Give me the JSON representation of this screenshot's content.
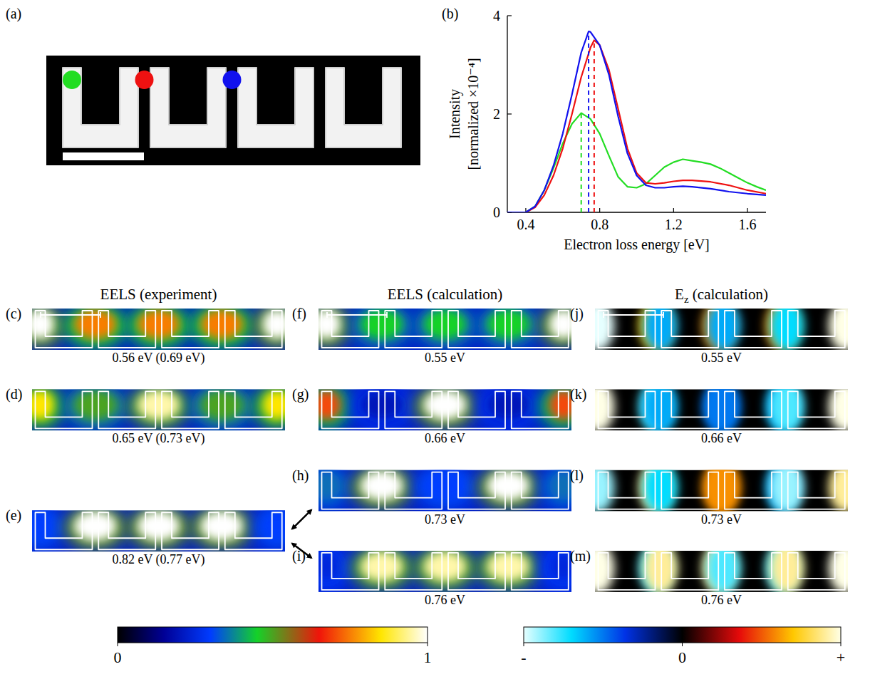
{
  "chart_data": {
    "type": "line",
    "label": "(b)",
    "x_label": "Electron loss energy [eV]",
    "y_label": [
      "Intensity",
      "[normalized ×10⁻⁴]"
    ],
    "xlim": [
      0.3,
      1.7
    ],
    "xticks": [
      0.4,
      0.8,
      1.2,
      1.6
    ],
    "ylim": [
      0,
      4
    ],
    "yticks": [
      0,
      2,
      4
    ],
    "grid": false,
    "line_style": "solid",
    "series": [
      {
        "color": "#22dd22",
        "peak": [
          0.7,
          2.02
        ],
        "x": [
          0.3,
          0.4,
          0.45,
          0.5,
          0.55,
          0.6,
          0.65,
          0.7,
          0.75,
          0.8,
          0.85,
          0.9,
          0.95,
          1.0,
          1.05,
          1.1,
          1.15,
          1.2,
          1.25,
          1.3,
          1.35,
          1.4,
          1.45,
          1.5,
          1.55,
          1.6,
          1.65,
          1.7
        ],
        "values": [
          0,
          0,
          0.12,
          0.45,
          0.9,
          1.4,
          1.8,
          2.02,
          1.9,
          1.6,
          1.15,
          0.72,
          0.52,
          0.5,
          0.58,
          0.75,
          0.92,
          1.02,
          1.08,
          1.05,
          1.02,
          0.98,
          0.9,
          0.8,
          0.7,
          0.6,
          0.52,
          0.45
        ]
      },
      {
        "color": "#ee1111",
        "peak": [
          0.77,
          3.5
        ],
        "x": [
          0.3,
          0.4,
          0.45,
          0.5,
          0.55,
          0.6,
          0.65,
          0.7,
          0.75,
          0.77,
          0.8,
          0.85,
          0.9,
          0.95,
          1.0,
          1.05,
          1.1,
          1.15,
          1.2,
          1.25,
          1.3,
          1.4,
          1.5,
          1.6,
          1.7
        ],
        "values": [
          0,
          0,
          0.1,
          0.35,
          0.75,
          1.3,
          2.0,
          2.75,
          3.35,
          3.5,
          3.4,
          2.9,
          2.1,
          1.3,
          0.8,
          0.6,
          0.58,
          0.6,
          0.63,
          0.65,
          0.65,
          0.62,
          0.55,
          0.45,
          0.38
        ]
      },
      {
        "color": "#1111ee",
        "peak": [
          0.74,
          3.68
        ],
        "x": [
          0.3,
          0.4,
          0.45,
          0.5,
          0.55,
          0.6,
          0.65,
          0.7,
          0.74,
          0.75,
          0.8,
          0.85,
          0.9,
          0.95,
          1.0,
          1.05,
          1.1,
          1.15,
          1.2,
          1.25,
          1.3,
          1.4,
          1.5,
          1.6,
          1.7
        ],
        "values": [
          0,
          0,
          0.12,
          0.45,
          0.95,
          1.6,
          2.4,
          3.25,
          3.68,
          3.67,
          3.4,
          2.8,
          1.95,
          1.2,
          0.75,
          0.55,
          0.5,
          0.5,
          0.52,
          0.53,
          0.52,
          0.48,
          0.42,
          0.38,
          0.35
        ]
      }
    ]
  },
  "figure": {
    "panel_a": {
      "label": "(a)"
    },
    "columns": [
      {
        "title": "EELS (experiment)",
        "maps": [
          {
            "label": "(c)",
            "caption": "0.56 eV (0.69 eV)",
            "intensity": [
              1,
              0.75,
              0.75,
              0.75,
              1
            ]
          },
          {
            "label": "(d)",
            "caption": "0.65 eV (0.73 eV)",
            "intensity": [
              0.85,
              0.5,
              0.95,
              0.5,
              0.85
            ]
          },
          {
            "label": "(e)",
            "caption": "0.82 eV (0.77 eV)",
            "intensity": [
              0.3,
              1,
              1,
              1,
              0.3
            ]
          }
        ]
      },
      {
        "title": "EELS (calculation)",
        "maps": [
          {
            "label": "(f)",
            "caption": "0.55 eV",
            "intensity": [
              1,
              0.45,
              0.45,
              0.45,
              1
            ]
          },
          {
            "label": "(g)",
            "caption": "0.66 eV",
            "intensity": [
              0.7,
              0.2,
              1,
              0.2,
              0.7
            ]
          },
          {
            "label": "(h)",
            "caption": "0.73 eV",
            "intensity": [
              0.35,
              1,
              0.3,
              1,
              0.35
            ]
          },
          {
            "label": "(i)",
            "caption": "0.76 eV",
            "intensity": [
              0.25,
              0.95,
              0.95,
              0.95,
              0.25
            ]
          }
        ]
      },
      {
        "title": "E",
        "subscript": "z",
        "suffix": " (calculation)",
        "fields": [
          {
            "label": "(j)",
            "caption": "0.55 eV",
            "values": [
              -1,
              0.7,
              -0.6,
              0.6,
              -0.6,
              0.6,
              -0.7,
              1
            ]
          },
          {
            "label": "(k)",
            "caption": "0.66 eV",
            "values": [
              1,
              -0.8,
              -0.6,
              -0.5,
              -0.5,
              -0.6,
              -0.8,
              1
            ]
          },
          {
            "label": "(l)",
            "caption": "0.73 eV",
            "values": [
              -0.9,
              0.9,
              -0.7,
              0.6,
              0.6,
              -0.6,
              -0.9,
              0.9
            ]
          },
          {
            "label": "(m)",
            "caption": "0.76 eV",
            "values": [
              1,
              -0.8,
              0.9,
              0.9,
              -0.8,
              -0.8,
              0.9,
              1
            ]
          }
        ]
      }
    ],
    "colorbars": [
      {
        "range": [
          0,
          1
        ],
        "ticks": [
          0,
          1
        ]
      },
      {
        "range": [
          -1,
          1
        ],
        "ticks": [
          {
            "value": -1,
            "label": "-"
          },
          0,
          {
            "value": 1,
            "label": "+"
          }
        ]
      }
    ]
  }
}
